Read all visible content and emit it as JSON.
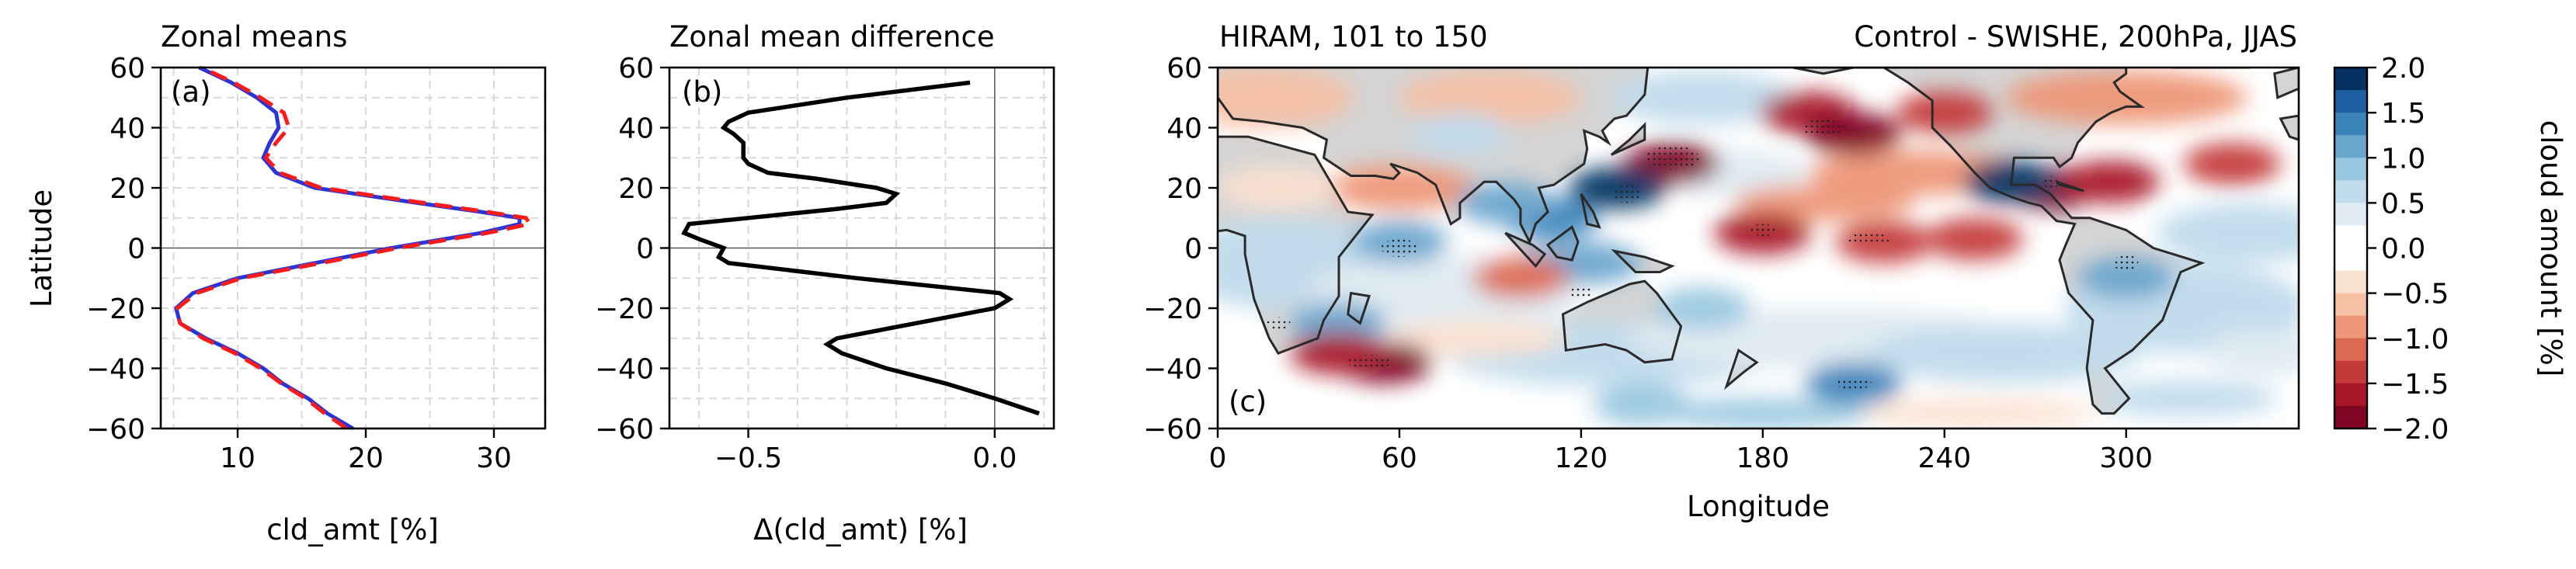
{
  "colors": {
    "blue_line": "#2b35d6",
    "red_dash": "#ff1a1a",
    "black_line": "#000000",
    "land": "#d4d4d4",
    "stipple": "#222222"
  },
  "chart_data": [
    {
      "panel": "(a)",
      "type": "line",
      "title": "Zonal means",
      "xlabel": "cld_amt [%]",
      "ylabel": "Latitude",
      "xlim": [
        4,
        34
      ],
      "ylim": [
        -60,
        60
      ],
      "xticks": [
        "10",
        "20",
        "30"
      ],
      "yticks": [
        "60",
        "40",
        "20",
        "0",
        "−20",
        "−40",
        "−60"
      ],
      "grid": true,
      "series": [
        {
          "style": "solid-blue",
          "lat": [
            -60,
            -55,
            -50,
            -45,
            -40,
            -35,
            -30,
            -25,
            -20,
            -15,
            -10,
            -5,
            0,
            5,
            8,
            10,
            12,
            15,
            20,
            25,
            30,
            35,
            40,
            45,
            50,
            55,
            60
          ],
          "values": [
            19,
            17,
            15.5,
            13.5,
            12,
            10,
            7.5,
            5.5,
            5.2,
            6.5,
            10,
            16,
            22,
            29,
            32,
            32,
            29,
            24,
            16,
            13,
            12,
            12.5,
            13.2,
            13,
            11.5,
            9.5,
            7
          ]
        },
        {
          "style": "dashed-red",
          "lat": [
            -60,
            -55,
            -50,
            -45,
            -40,
            -35,
            -30,
            -25,
            -20,
            -15,
            -10,
            -5,
            0,
            5,
            8,
            10,
            12,
            15,
            20,
            25,
            30,
            35,
            40,
            45,
            50,
            55,
            60
          ],
          "values": [
            18.5,
            16.8,
            15.3,
            13.4,
            11.8,
            9.8,
            7.3,
            5.5,
            5.3,
            6.8,
            10.3,
            16.5,
            22.5,
            29.5,
            32.8,
            32.5,
            29.5,
            24.5,
            16.5,
            13.3,
            12.2,
            13,
            14,
            13.6,
            11.8,
            9.7,
            7.2
          ]
        }
      ]
    },
    {
      "panel": "(b)",
      "type": "line",
      "title": "Zonal mean difference",
      "xlabel": "Δ(cld_amt) [%]",
      "ylim": [
        -60,
        60
      ],
      "xlim": [
        -0.66,
        0.12
      ],
      "xticks": [
        "−0.5",
        "0.0"
      ],
      "yticks": [
        "60",
        "40",
        "20",
        "0",
        "−20",
        "−40",
        "−60"
      ],
      "grid": true,
      "series": [
        {
          "style": "solid-black",
          "lat": [
            -55,
            -50,
            -45,
            -40,
            -35,
            -32,
            -30,
            -25,
            -20,
            -17,
            -15,
            -10,
            -5,
            -3,
            0,
            3,
            5,
            8,
            10,
            13,
            15,
            18,
            20,
            23,
            25,
            28,
            30,
            33,
            35,
            38,
            40,
            42,
            45,
            50,
            55
          ],
          "values": [
            0.09,
            0.0,
            -0.1,
            -0.22,
            -0.31,
            -0.34,
            -0.32,
            -0.16,
            0.0,
            0.03,
            0.01,
            -0.28,
            -0.54,
            -0.56,
            -0.55,
            -0.6,
            -0.63,
            -0.62,
            -0.5,
            -0.32,
            -0.22,
            -0.2,
            -0.24,
            -0.36,
            -0.46,
            -0.5,
            -0.51,
            -0.51,
            -0.51,
            -0.53,
            -0.55,
            -0.54,
            -0.5,
            -0.3,
            -0.05
          ]
        }
      ]
    },
    {
      "panel": "(c)",
      "type": "heatmap",
      "title_left": "HIRAM, 101 to 150",
      "title_right": "Control - SWISHE, 200hPa, JJAS",
      "xlabel": "Longitude",
      "xlim": [
        0,
        357
      ],
      "ylim": [
        -60,
        60
      ],
      "xticks": [
        "0",
        "60",
        "120",
        "180",
        "240",
        "300"
      ],
      "yticks": [
        "60",
        "40",
        "20",
        "0",
        "−20",
        "−40",
        "−60"
      ],
      "colorbar": {
        "label": "cloud amount [%]",
        "ticks": [
          "2.0",
          "1.5",
          "1.0",
          "0.5",
          "0.0",
          "−0.5",
          "−1.0",
          "−1.5",
          "−2.0"
        ],
        "levels": [
          2.0,
          1.75,
          1.5,
          1.25,
          1.0,
          0.75,
          0.5,
          0.25,
          0.0,
          -0.25,
          -0.5,
          -0.75,
          -1.0,
          -1.25,
          -1.5,
          -1.75,
          -2.0
        ],
        "colors": [
          "#053061",
          "#1d5fa0",
          "#3a84bb",
          "#6aa5cd",
          "#9ac8e0",
          "#c0dbec",
          "#dfeaf2",
          "#ffffff",
          "#ffffff",
          "#fbe1d0",
          "#f6c0a4",
          "#ee9677",
          "#dc6a52",
          "#c43a3a",
          "#a81528",
          "#7f0522"
        ]
      },
      "features": [
        {
          "lon": 150,
          "lat": 28,
          "value": -1.9
        },
        {
          "lon": 195,
          "lat": 45,
          "value": -1.7
        },
        {
          "lon": 210,
          "lat": 38,
          "value": -1.8
        },
        {
          "lon": 132,
          "lat": 20,
          "value": 1.8
        },
        {
          "lon": 110,
          "lat": 10,
          "value": 1.4
        },
        {
          "lon": 95,
          "lat": 15,
          "value": 1.2
        },
        {
          "lon": 60,
          "lat": 2,
          "value": 1.1
        },
        {
          "lon": 40,
          "lat": -25,
          "value": 1.0
        },
        {
          "lon": 55,
          "lat": -38,
          "value": -1.8
        },
        {
          "lon": 40,
          "lat": -35,
          "value": -1.6
        },
        {
          "lon": 180,
          "lat": 5,
          "value": -1.7
        },
        {
          "lon": 220,
          "lat": 2,
          "value": -1.5
        },
        {
          "lon": 250,
          "lat": 3,
          "value": -1.4
        },
        {
          "lon": 275,
          "lat": 20,
          "value": -1.9
        },
        {
          "lon": 295,
          "lat": 22,
          "value": -1.6
        },
        {
          "lon": 335,
          "lat": 28,
          "value": -1.4
        },
        {
          "lon": 262,
          "lat": 22,
          "value": 1.8
        },
        {
          "lon": 300,
          "lat": -10,
          "value": 1.1
        },
        {
          "lon": 210,
          "lat": -45,
          "value": 1.3
        },
        {
          "lon": 140,
          "lat": -52,
          "value": 0.9
        },
        {
          "lon": 80,
          "lat": 38,
          "value": 0.6
        },
        {
          "lon": 240,
          "lat": 45,
          "value": -1.3
        },
        {
          "lon": 100,
          "lat": -10,
          "value": -1.2
        },
        {
          "lon": 160,
          "lat": -20,
          "value": 0.8
        }
      ]
    }
  ]
}
